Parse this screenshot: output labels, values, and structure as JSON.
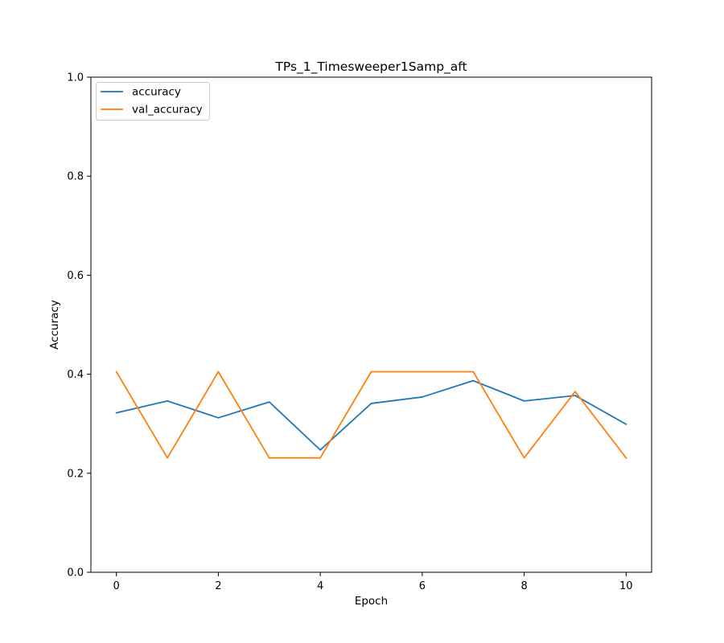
{
  "chart_data": {
    "type": "line",
    "title": "TPs_1_Timesweeper1Samp_aft",
    "xlabel": "Epoch",
    "ylabel": "Accuracy",
    "xlim": [
      -0.5,
      10.5
    ],
    "ylim": [
      0.0,
      1.0
    ],
    "xticks": [
      0,
      2,
      4,
      6,
      8,
      10
    ],
    "xtick_labels": [
      "0",
      "2",
      "4",
      "6",
      "8",
      "10"
    ],
    "yticks": [
      0.0,
      0.2,
      0.4,
      0.6,
      0.8,
      1.0
    ],
    "ytick_labels": [
      "0.0",
      "0.2",
      "0.4",
      "0.6",
      "0.8",
      "1.0"
    ],
    "grid": false,
    "legend_position": "top-left",
    "x": [
      0,
      1,
      2,
      3,
      4,
      5,
      6,
      7,
      8,
      9,
      10
    ],
    "series": [
      {
        "name": "accuracy",
        "color": "#1f77b4",
        "values": [
          0.322,
          0.346,
          0.312,
          0.344,
          0.247,
          0.341,
          0.354,
          0.387,
          0.346,
          0.357,
          0.299
        ]
      },
      {
        "name": "val_accuracy",
        "color": "#ff7f0e",
        "values": [
          0.405,
          0.231,
          0.405,
          0.231,
          0.231,
          0.405,
          0.405,
          0.405,
          0.231,
          0.365,
          0.231
        ]
      }
    ]
  }
}
